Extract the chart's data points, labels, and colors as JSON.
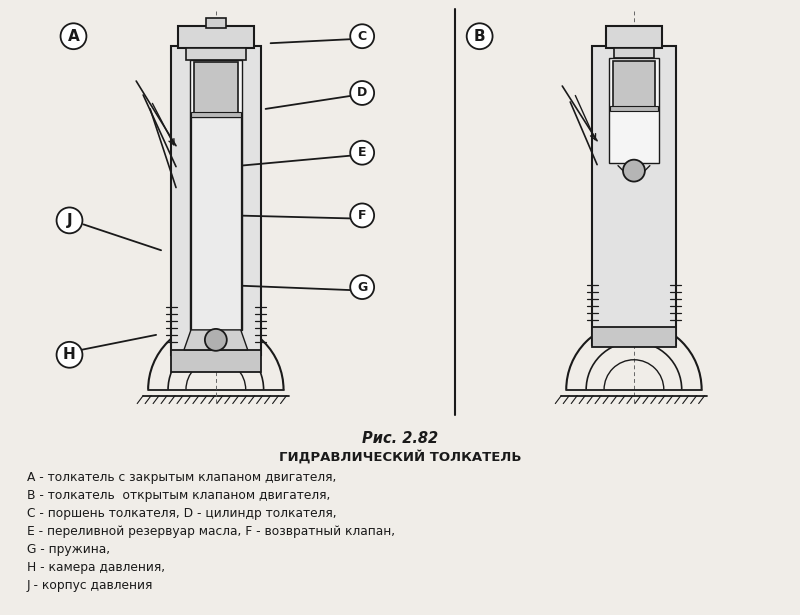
{
  "background_color": "#f0ede8",
  "line_color": "#1a1a1a",
  "fig_width": 8.0,
  "fig_height": 6.15,
  "title_line1": "Рис. 2.82",
  "title_line2": "ГИДРАВЛИЧЕСКИЙ ТОЛКАТЕЛЬ",
  "legend_lines": [
    "A - толкатель с закрытым клапаном двигателя,",
    "B - толкатель  открытым клапаном двигателя,",
    "C - поршень толкателя, D - цилиндр толкателя,",
    "E - переливной резервуар масла, F - возвратный клапан,",
    "G - пружина,",
    "H - камера давления,",
    "J - корпус давления"
  ],
  "label_A": "A",
  "label_B": "B",
  "label_C": "C",
  "label_D": "D",
  "label_E": "E",
  "label_F": "F",
  "label_G": "G",
  "label_H": "H",
  "label_J": "J"
}
